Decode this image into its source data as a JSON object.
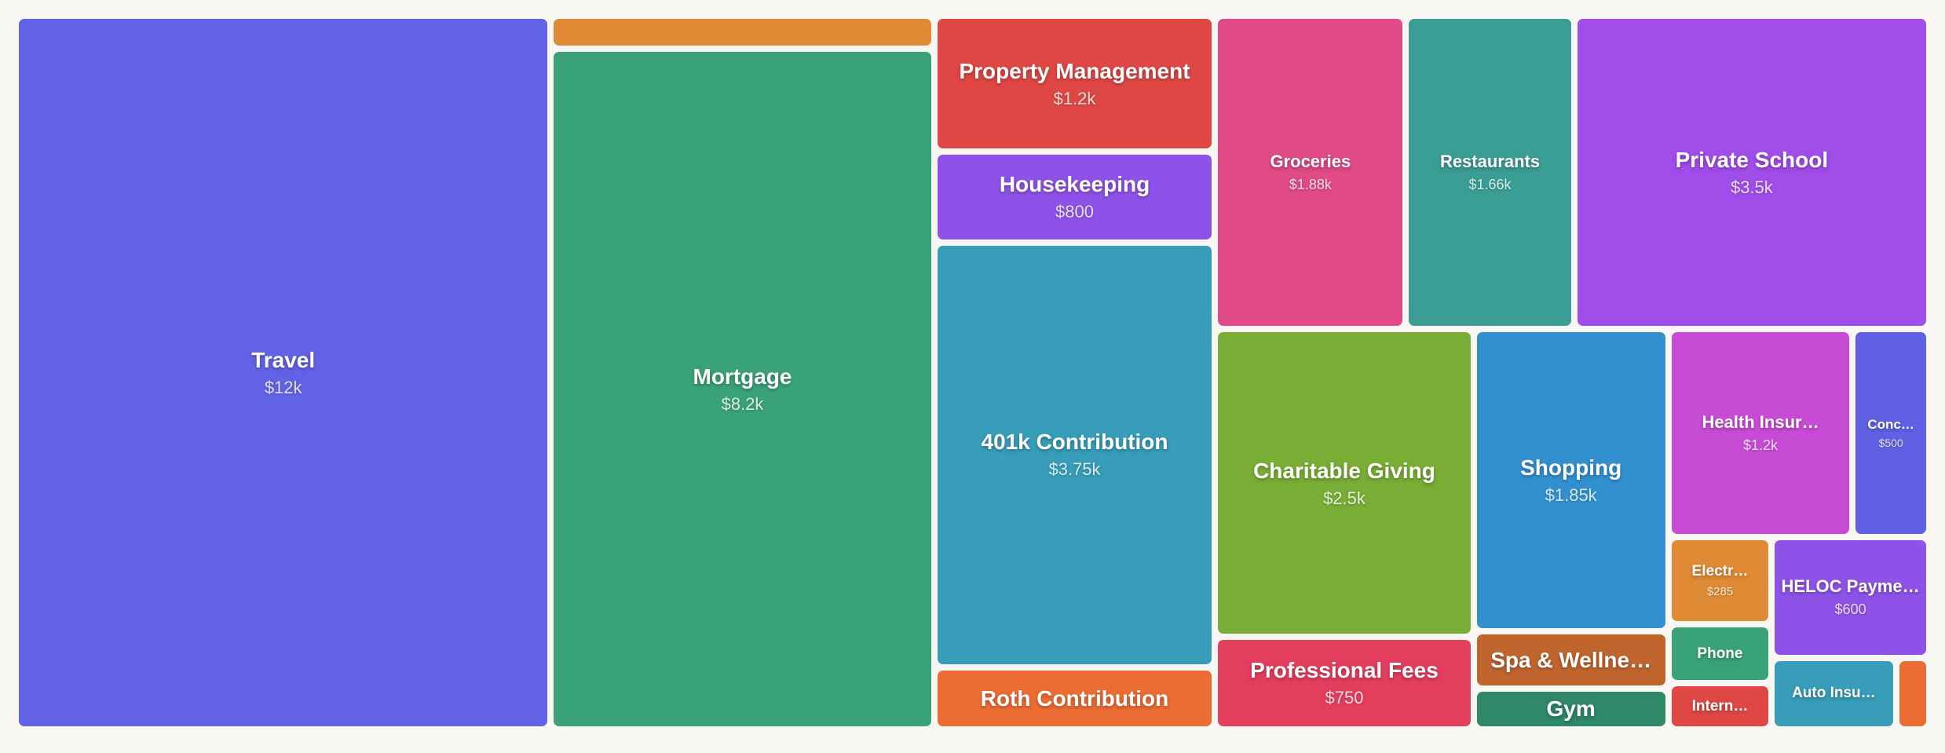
{
  "chart_data": {
    "type": "treemap",
    "categories": [
      "Travel",
      null,
      "Mortgage",
      "Property Management",
      "Housekeeping",
      "401k Contribution",
      "Roth Contribution",
      "Groceries",
      "Restaurants",
      "Private School",
      "Charitable Giving",
      "Professional Fees",
      "Shopping",
      "Spa & Wellne…",
      "Gym",
      "Health Insur…",
      "Conc…",
      "Electr…",
      "Phone",
      "Intern…",
      "HELOC Payme…",
      "Auto Insu…",
      null
    ],
    "values": [
      12000,
      400,
      8200,
      1200,
      800,
      3750,
      550,
      1880,
      1660,
      3500,
      2500,
      750,
      1850,
      350,
      250,
      1200,
      500,
      285,
      190,
      150,
      600,
      280,
      75
    ],
    "value_labels": [
      "$12k",
      null,
      "$8.2k",
      "$1.2k",
      "$800",
      "$3.75k",
      null,
      "$1.88k",
      "$1.66k",
      "$3.5k",
      "$2.5k",
      "$750",
      "$1.85k",
      null,
      null,
      "$1.2k",
      "$500",
      "$285",
      null,
      null,
      "$600",
      null,
      null
    ],
    "colors": [
      "#6262e6",
      "#df8a35",
      "#3aa27b",
      "#df4744",
      "#8e52e8",
      "#379db8",
      "#ec6c34",
      "#e04a86",
      "#3a9e94",
      "#a04de9",
      "#7aad35",
      "#e43e5e",
      "#3390cf",
      "#c0652e",
      "#2f8868",
      "#c84bd6",
      "#6060e4",
      "#df8a35",
      "#3aa27b",
      "#df4744",
      "#8e52e8",
      "#379db8",
      "#ec6c34"
    ]
  }
}
